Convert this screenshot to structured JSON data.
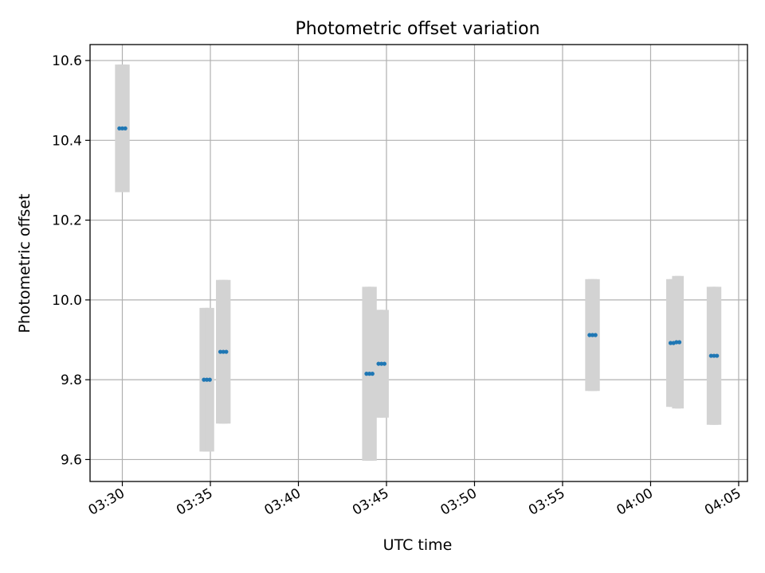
{
  "chart_data": {
    "type": "scatter",
    "title": "Photometric offset variation",
    "xlabel": "UTC time",
    "ylabel": "Photometric offset",
    "x_ticks": [
      "03:30",
      "03:35",
      "03:40",
      "03:45",
      "03:50",
      "03:55",
      "04:00",
      "04:05"
    ],
    "y_ticks": [
      "9.6",
      "9.8",
      "10.0",
      "10.2",
      "10.4",
      "10.6"
    ],
    "xlim": [
      "03:28:10",
      "04:05:30"
    ],
    "ylim": [
      9.545,
      10.64
    ],
    "grid": true,
    "point_color": "#1f77b4",
    "errorbar_color": "#d3d3d3",
    "points": [
      {
        "x": "03:29:50",
        "y": 10.43,
        "yerr": 0.16
      },
      {
        "x": "03:30:00",
        "y": 10.43,
        "yerr": 0.16
      },
      {
        "x": "03:30:10",
        "y": 10.43,
        "yerr": 0.16
      },
      {
        "x": "03:34:38",
        "y": 9.8,
        "yerr": 0.18
      },
      {
        "x": "03:34:48",
        "y": 9.8,
        "yerr": 0.18
      },
      {
        "x": "03:34:58",
        "y": 9.8,
        "yerr": 0.18
      },
      {
        "x": "03:35:34",
        "y": 9.87,
        "yerr": 0.18
      },
      {
        "x": "03:35:44",
        "y": 9.87,
        "yerr": 0.18
      },
      {
        "x": "03:35:54",
        "y": 9.87,
        "yerr": 0.18
      },
      {
        "x": "03:43:52",
        "y": 9.815,
        "yerr": 0.218
      },
      {
        "x": "03:44:02",
        "y": 9.815,
        "yerr": 0.218
      },
      {
        "x": "03:44:12",
        "y": 9.815,
        "yerr": 0.218
      },
      {
        "x": "03:44:33",
        "y": 9.84,
        "yerr": 0.135
      },
      {
        "x": "03:44:43",
        "y": 9.84,
        "yerr": 0.135
      },
      {
        "x": "03:44:53",
        "y": 9.84,
        "yerr": 0.135
      },
      {
        "x": "03:56:32",
        "y": 9.912,
        "yerr": 0.14
      },
      {
        "x": "03:56:42",
        "y": 9.912,
        "yerr": 0.14
      },
      {
        "x": "03:56:52",
        "y": 9.912,
        "yerr": 0.14
      },
      {
        "x": "04:01:08",
        "y": 9.892,
        "yerr": 0.16
      },
      {
        "x": "04:01:18",
        "y": 9.892,
        "yerr": 0.16
      },
      {
        "x": "04:01:28",
        "y": 9.894,
        "yerr": 0.166
      },
      {
        "x": "04:01:38",
        "y": 9.894,
        "yerr": 0.166
      },
      {
        "x": "04:03:26",
        "y": 9.86,
        "yerr": 0.173
      },
      {
        "x": "04:03:36",
        "y": 9.86,
        "yerr": 0.173
      },
      {
        "x": "04:03:46",
        "y": 9.86,
        "yerr": 0.173
      }
    ]
  }
}
